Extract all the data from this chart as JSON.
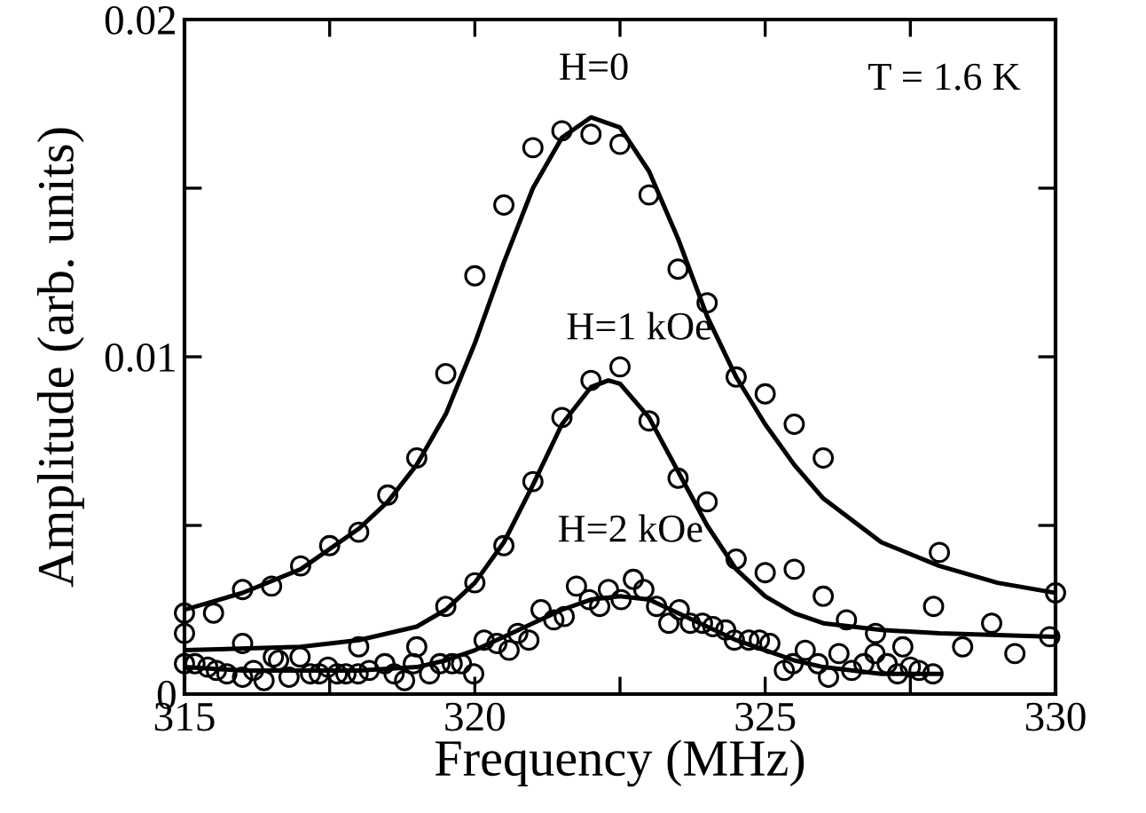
{
  "chart_data": {
    "type": "scatter",
    "xlabel": "Frequency (MHz)",
    "ylabel": "Amplitude (arb. units)",
    "xlim": [
      315,
      330
    ],
    "ylim": [
      0,
      0.02
    ],
    "xticks": [
      315,
      {
        "value": 317.5,
        "label": null
      },
      320,
      {
        "value": 322.5,
        "label": null
      },
      325,
      {
        "value": 327.5,
        "label": null
      },
      330
    ],
    "yticks": [
      0,
      {
        "value": 0.005,
        "label": null
      },
      0.01,
      {
        "value": 0.015,
        "label": null
      },
      0.02
    ],
    "grid": false,
    "legend": false,
    "annotations": [
      "H=0",
      "H=1 kOe",
      "H=2 kOe",
      "T = 1.6 K"
    ],
    "series": [
      {
        "marker": "circle",
        "color": "#000000",
        "x": [
          315,
          315.5,
          316,
          316.5,
          317,
          317.5,
          318,
          318.5,
          319,
          319.5,
          320,
          320.5,
          321,
          321.5,
          322,
          322.5,
          323,
          323.5,
          324,
          324.5,
          325,
          325.5,
          326,
          328,
          330
        ],
        "values": [
          0.0024,
          0.0024,
          0.0031,
          0.0032,
          0.0038,
          0.0044,
          0.0048,
          0.0059,
          0.007,
          0.0095,
          0.0124,
          0.0145,
          0.0162,
          0.0167,
          0.0166,
          0.0163,
          0.0148,
          0.0126,
          0.0116,
          0.0094,
          0.0089,
          0.008,
          0.007,
          0.0042,
          0.003
        ]
      },
      {
        "type": "line",
        "line_style": "solid",
        "color": "#000000",
        "x": [
          315,
          316,
          317,
          318,
          318.5,
          319,
          319.5,
          320,
          320.5,
          321,
          321.5,
          322,
          322.5,
          323,
          323.5,
          324,
          324.5,
          325,
          325.5,
          326,
          327,
          328,
          329,
          330
        ],
        "values": [
          0.0025,
          0.003,
          0.0037,
          0.0049,
          0.0057,
          0.0068,
          0.0083,
          0.0104,
          0.0128,
          0.015,
          0.0165,
          0.0171,
          0.0168,
          0.0155,
          0.0135,
          0.0112,
          0.0094,
          0.008,
          0.0068,
          0.0058,
          0.0045,
          0.0038,
          0.0033,
          0.003
        ]
      },
      {
        "marker": "circle",
        "color": "#000000",
        "x": [
          315,
          316,
          318,
          319,
          319.5,
          320,
          320.5,
          321,
          321.5,
          322,
          322.5,
          323,
          323.5,
          324,
          324.5,
          325,
          325.5,
          326,
          326.4,
          326.9,
          327.9,
          328.4,
          328.9,
          329.3,
          329.9
        ],
        "values": [
          0.0018,
          0.0015,
          0.0014,
          0.0014,
          0.0026,
          0.0033,
          0.0044,
          0.0063,
          0.0082,
          0.0093,
          0.0097,
          0.0081,
          0.0064,
          0.0057,
          0.004,
          0.0036,
          0.0037,
          0.0029,
          0.0022,
          0.0018,
          0.0026,
          0.0014,
          0.0021,
          0.0012,
          0.0017
        ]
      },
      {
        "type": "line",
        "line_style": "solid",
        "color": "#000000",
        "x": [
          315,
          317,
          318,
          319,
          319.5,
          320,
          320.5,
          321,
          321.5,
          322,
          322.3,
          322.5,
          323,
          323.5,
          324,
          324.5,
          325,
          325.5,
          326,
          327,
          328,
          330
        ],
        "values": [
          0.0013,
          0.0014,
          0.0016,
          0.002,
          0.0025,
          0.0033,
          0.0045,
          0.0062,
          0.008,
          0.0091,
          0.0093,
          0.0092,
          0.0082,
          0.0066,
          0.005,
          0.0037,
          0.0029,
          0.0024,
          0.0021,
          0.0019,
          0.0018,
          0.0017
        ]
      },
      {
        "marker": "circle",
        "color": "#000000",
        "x": [
          315,
          315.18,
          315.4,
          315.55,
          315.73,
          316,
          316.19,
          316.37,
          316.53,
          316.62,
          316.8,
          316.99,
          317.17,
          317.32,
          317.47,
          317.63,
          317.78,
          317.99,
          318.18,
          318.45,
          318.61,
          318.79,
          318.94,
          319.22,
          319.4,
          319.61,
          319.77,
          319.98,
          320.16,
          320.38,
          320.59,
          320.74,
          320.93,
          321.14,
          321.36,
          321.54,
          321.75,
          321.97,
          322.15,
          322.3,
          322.52,
          322.73,
          322.91,
          323.13,
          323.34,
          323.52,
          323.71,
          323.92,
          324.1,
          324.32,
          324.47,
          324.72,
          324.9,
          325.08,
          325.33,
          325.48,
          325.69,
          325.91,
          326.09,
          326.27,
          326.49,
          326.7,
          326.89,
          327.1,
          327.28,
          327.37,
          327.5,
          327.65,
          327.89
        ],
        "values": [
          0.0009,
          0.0009,
          0.0008,
          0.0007,
          0.0006,
          0.0005,
          0.0007,
          0.0004,
          0.0011,
          0.001,
          0.0005,
          0.0011,
          0.0006,
          0.0006,
          0.0008,
          0.0006,
          0.0006,
          0.0006,
          0.0007,
          0.0009,
          0.0006,
          0.0004,
          0.0009,
          0.0006,
          0.0009,
          0.0009,
          0.0009,
          0.0006,
          0.0016,
          0.0015,
          0.0013,
          0.0018,
          0.0016,
          0.0025,
          0.0022,
          0.0023,
          0.0032,
          0.0028,
          0.0026,
          0.0031,
          0.0028,
          0.0034,
          0.0031,
          0.0026,
          0.0021,
          0.0025,
          0.0021,
          0.0021,
          0.002,
          0.0019,
          0.0016,
          0.0016,
          0.0016,
          0.0015,
          0.0007,
          0.0009,
          0.0013,
          0.0009,
          0.0005,
          0.0012,
          0.0007,
          0.0009,
          0.0012,
          0.0009,
          0.0006,
          0.0014,
          0.0008,
          0.0007,
          0.0006
        ]
      },
      {
        "type": "line",
        "line_style": "solid",
        "color": "#000000",
        "x": [
          315,
          316,
          318,
          319,
          319.5,
          320,
          320.5,
          321,
          321.5,
          322,
          322.5,
          323,
          323.5,
          324,
          324.5,
          325,
          325.5,
          326,
          327,
          328
        ],
        "values": [
          0.0008,
          0.0007,
          0.0007,
          0.0008,
          0.001,
          0.0013,
          0.0017,
          0.0021,
          0.0025,
          0.0028,
          0.0029,
          0.0028,
          0.0024,
          0.002,
          0.0016,
          0.0013,
          0.001,
          0.0008,
          0.0006,
          0.0006
        ]
      }
    ]
  }
}
